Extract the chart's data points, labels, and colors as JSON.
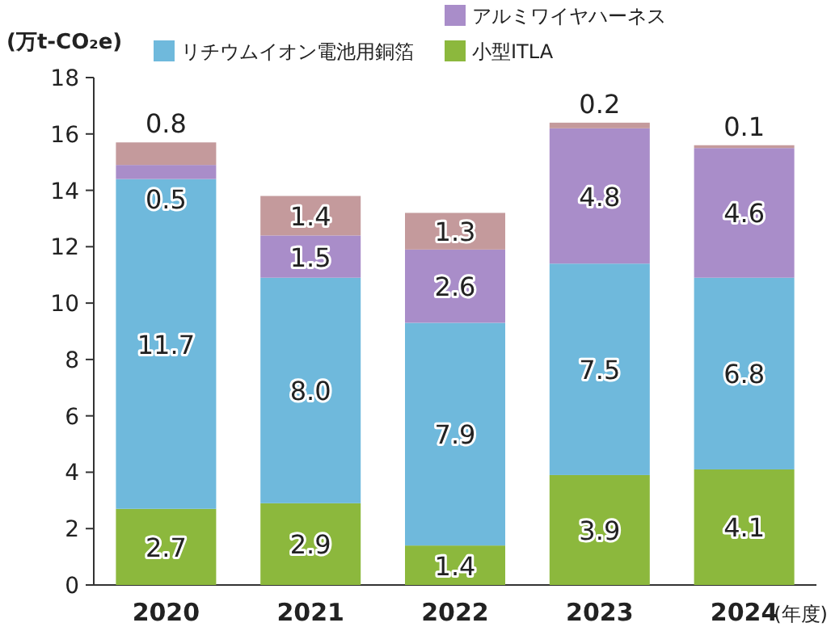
{
  "chart_data": {
    "type": "bar",
    "stacked": true,
    "ylabel": "(万t-CO₂e)",
    "xlabel": "(年度)",
    "categories": [
      "2020",
      "2021",
      "2022",
      "2023",
      "2024"
    ],
    "series": [
      {
        "name": "小型ITLA",
        "color": "#8cb83d",
        "values": [
          2.7,
          2.9,
          1.4,
          3.9,
          4.1
        ],
        "value_labels": [
          "2.7",
          "2.9",
          "1.4",
          "3.9",
          "4.1"
        ]
      },
      {
        "name": "リチウムイオン電池用銅箔",
        "color": "#6fb9dc",
        "values": [
          11.7,
          8.0,
          7.9,
          7.5,
          6.8
        ],
        "value_labels": [
          "11.7",
          "8.0",
          "7.9",
          "7.5",
          "6.8"
        ]
      },
      {
        "name": "アルミワイヤハーネス",
        "color": "#a98dc9",
        "values": [
          0.5,
          1.5,
          2.6,
          4.8,
          4.6
        ],
        "value_labels": [
          "0.5",
          "1.5",
          "2.6",
          "4.8",
          "4.6"
        ]
      },
      {
        "color": "#c49a9c",
        "values": [
          0.8,
          1.4,
          1.3,
          0.2,
          0.1
        ],
        "value_labels": [
          "0.8",
          "1.4",
          "1.3",
          "0.2",
          "0.1"
        ]
      }
    ],
    "ylim": [
      0,
      18
    ],
    "yticks": [
      0,
      2,
      4,
      6,
      8,
      10,
      12,
      14,
      16,
      18
    ],
    "legend": "top",
    "grid": false
  }
}
